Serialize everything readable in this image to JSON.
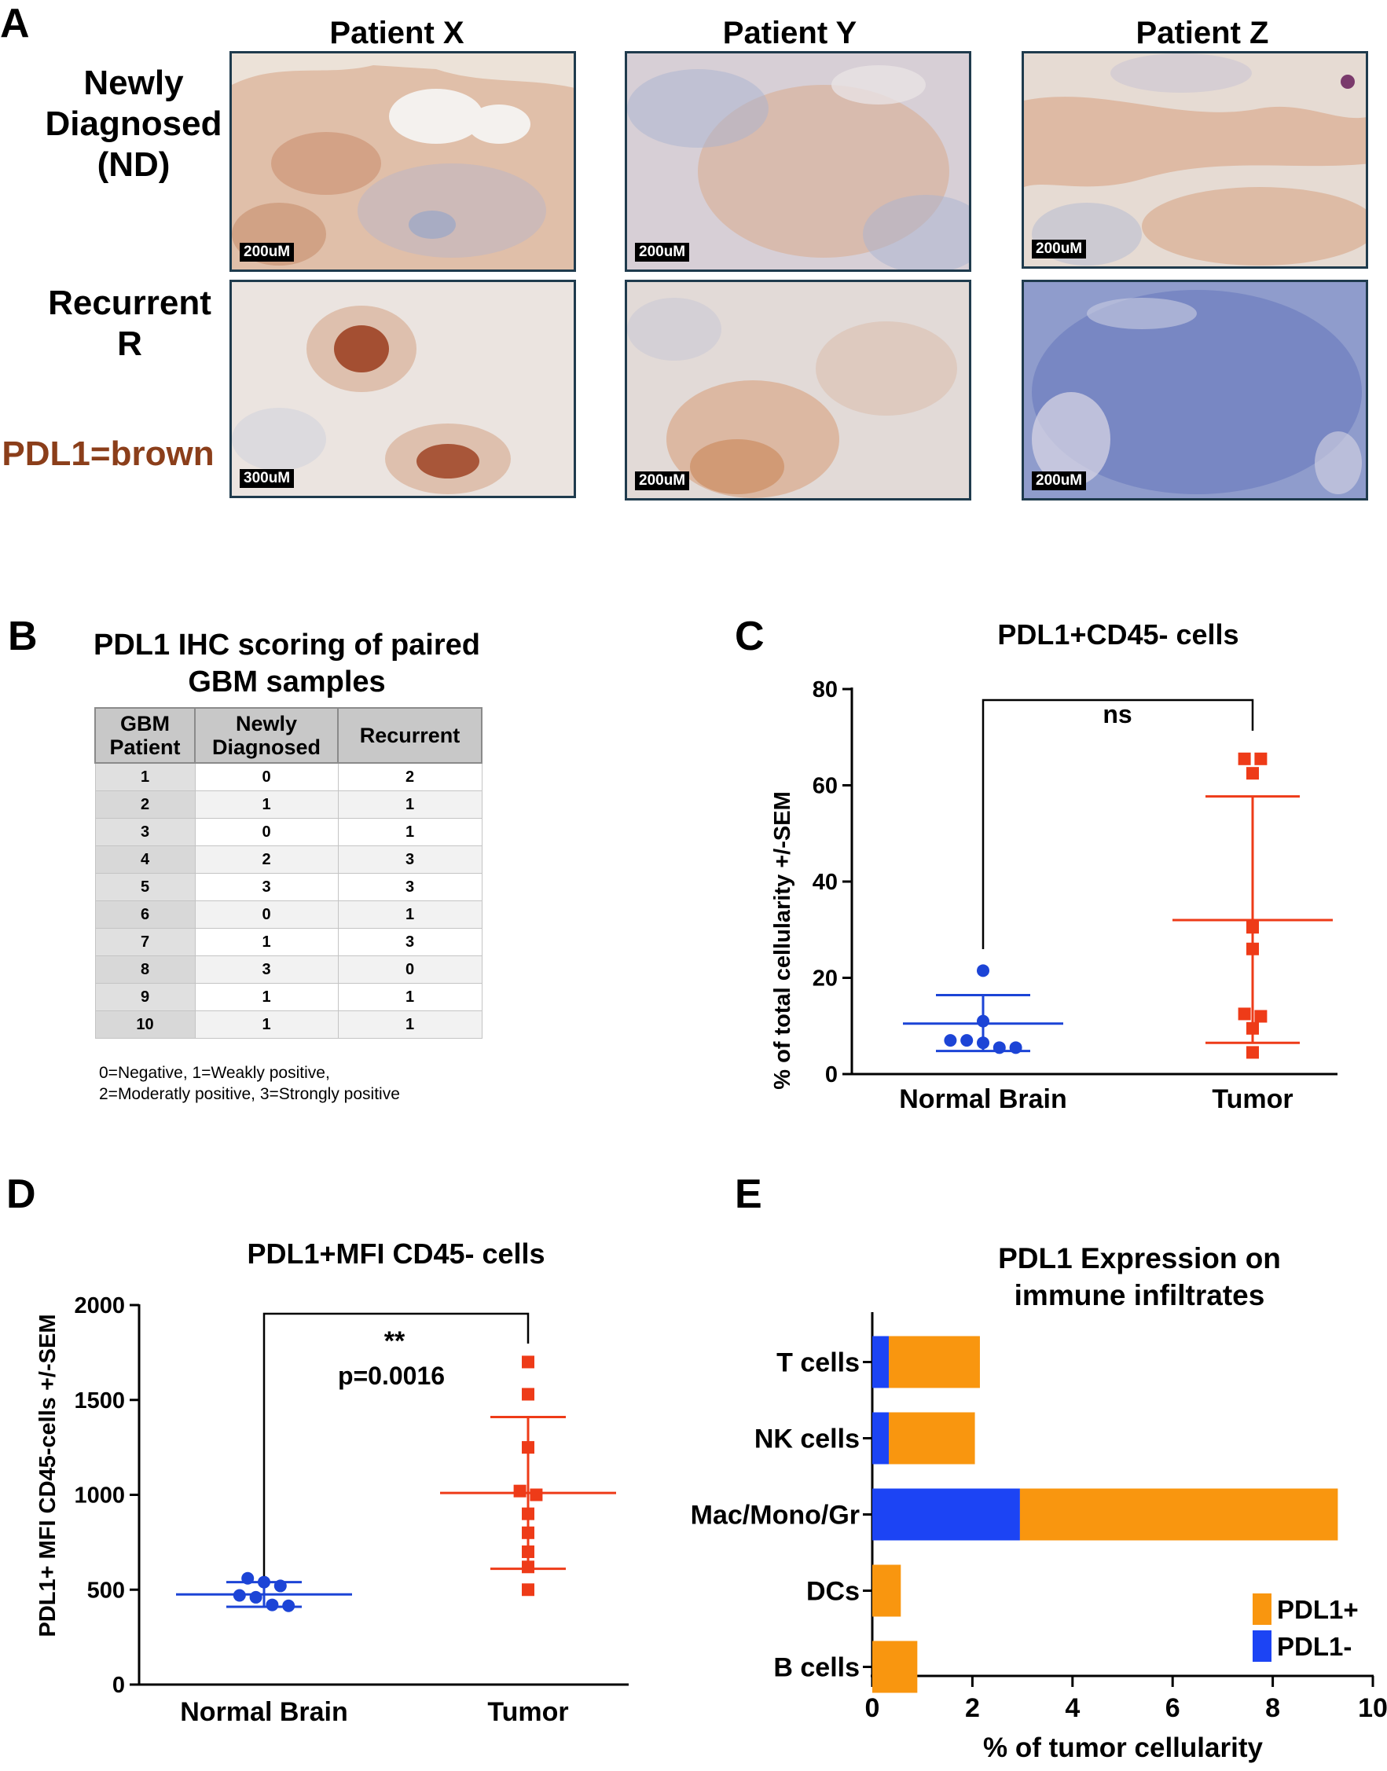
{
  "panels": {
    "a": {
      "letter": "A",
      "columns": [
        "Patient X",
        "Patient Y",
        "Patient Z"
      ],
      "row_labels": [
        "Newly\nDiagnosed\n(ND)",
        "Recurrent\nR"
      ],
      "legend": "PDL1=brown",
      "legend_color": "#8b3e1a",
      "scalebars": [
        "200uM",
        "200uM",
        "200uM",
        "300uM",
        "200uM",
        "200uM"
      ]
    },
    "b": {
      "letter": "B",
      "title": "PDL1 IHC scoring of paired\nGBM samples",
      "headers": [
        "GBM\nPatient",
        "Newly\nDiagnosed",
        "Recurrent"
      ],
      "rows": [
        [
          "1",
          "0",
          "2"
        ],
        [
          "2",
          "1",
          "1"
        ],
        [
          "3",
          "0",
          "1"
        ],
        [
          "4",
          "2",
          "3"
        ],
        [
          "5",
          "3",
          "3"
        ],
        [
          "6",
          "0",
          "1"
        ],
        [
          "7",
          "1",
          "3"
        ],
        [
          "8",
          "3",
          "0"
        ],
        [
          "9",
          "1",
          "1"
        ],
        [
          "10",
          "1",
          "1"
        ]
      ],
      "footnote": "0=Negative, 1=Weakly positive,\n2=Moderatly positive, 3=Strongly positive"
    },
    "c": {
      "letter": "C"
    },
    "d": {
      "letter": "D"
    },
    "e": {
      "letter": "E"
    }
  },
  "chart_data": [
    {
      "type": "scatter",
      "panel": "C",
      "title": "PDL1+CD45- cells",
      "ylabel": "% of total cellularity +/-SEM",
      "xlabel": "",
      "categories": [
        "Normal Brain",
        "Tumor"
      ],
      "ylim": [
        0,
        80
      ],
      "yticks": [
        0,
        20,
        40,
        60,
        80
      ],
      "series": [
        {
          "name": "Normal Brain",
          "color": "#1c44d6",
          "marker": "circle",
          "values": [
            21.5,
            11,
            7,
            7,
            6.5,
            5.5,
            5.5
          ],
          "mean": 10.5,
          "sem_low": 4.8,
          "sem_high": 16.4
        },
        {
          "name": "Tumor",
          "color": "#ee3b18",
          "marker": "square",
          "values": [
            65.5,
            65.5,
            62.5,
            30.5,
            26,
            12.5,
            12,
            9.5,
            4.5
          ],
          "mean": 32,
          "sem_low": 6.5,
          "sem_high": 57.7
        }
      ],
      "significance": "ns"
    },
    {
      "type": "scatter",
      "panel": "D",
      "title": "PDL1+MFI CD45- cells",
      "ylabel": "PDL1+ MFI CD45-cells +/-SEM",
      "xlabel": "",
      "categories": [
        "Normal Brain",
        "Tumor"
      ],
      "ylim": [
        0,
        2000
      ],
      "yticks": [
        0,
        500,
        1000,
        1500,
        2000
      ],
      "series": [
        {
          "name": "Normal Brain",
          "color": "#1c44d6",
          "marker": "circle",
          "values": [
            560,
            540,
            520,
            470,
            460,
            420,
            415
          ],
          "mean": 475,
          "sem_low": 410,
          "sem_high": 540
        },
        {
          "name": "Tumor",
          "color": "#ee3b18",
          "marker": "square",
          "values": [
            1700,
            1530,
            1250,
            1020,
            1000,
            900,
            800,
            700,
            620,
            500
          ],
          "mean": 1010,
          "sem_low": 610,
          "sem_high": 1410
        }
      ],
      "significance": "**",
      "p_value": "p=0.0016"
    },
    {
      "type": "bar",
      "orientation": "horizontal",
      "stacked": true,
      "panel": "E",
      "title": "PDL1 Expression on\nimmune infiltrates",
      "xlabel": "% of tumor cellularity",
      "ylabel": "",
      "categories": [
        "T cells",
        "NK cells",
        "Mac/Mono/Gr",
        "DCs",
        "B cells"
      ],
      "xlim": [
        0,
        10
      ],
      "xticks": [
        0,
        2,
        4,
        6,
        8,
        10
      ],
      "series": [
        {
          "name": "PDL1-",
          "color": "#1c44f4",
          "values": [
            0.33,
            0.33,
            2.95,
            0,
            0
          ]
        },
        {
          "name": "PDL1+",
          "color": "#f9960f",
          "values": [
            1.82,
            1.72,
            6.35,
            0.57,
            0.9
          ]
        }
      ],
      "legend": {
        "position": "bottom-right",
        "entries": [
          "PDL1+",
          "PDL1-"
        ]
      }
    }
  ]
}
